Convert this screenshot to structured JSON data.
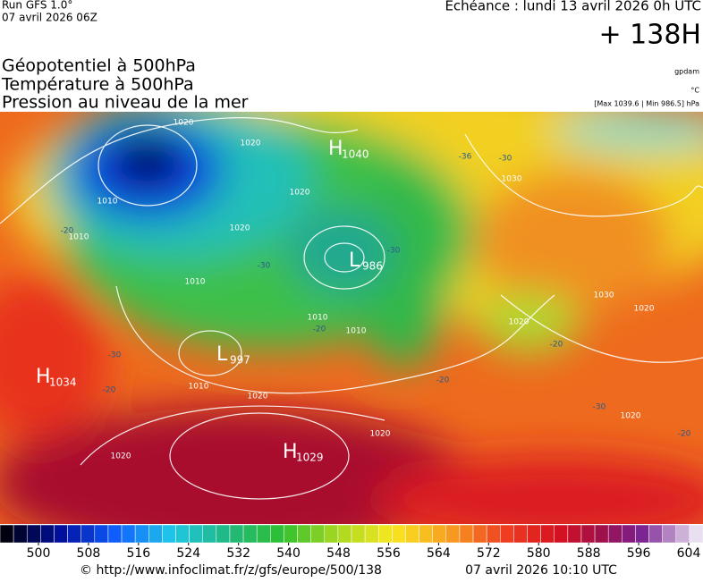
{
  "header": {
    "run": "Run GFS 1.0°",
    "run_date": "07 avril 2026 06Z",
    "valid_time": "Echéance : lundi 13 avril 2026 0h UTC",
    "lead": "+ 138H"
  },
  "layers": [
    "Géopotentiel à 500hPa",
    "Température à 500hPa",
    "Pression au niveau de la mer"
  ],
  "units": {
    "geopotential": "gpdam",
    "temperature": "°C",
    "pressure": "[Max 1039.6 | Min 986.5] hPa"
  },
  "pressure_centers": [
    {
      "label": "H",
      "value": 1040
    },
    {
      "label": "L",
      "value": 986
    },
    {
      "label": "L",
      "value": 997
    },
    {
      "label": "H",
      "value": 1034
    },
    {
      "label": "H",
      "value": 1029
    }
  ],
  "isobar_labels": [
    1020,
    1020,
    1010,
    1010,
    1020,
    1020,
    1010,
    1010,
    1010,
    1010,
    1020,
    1020,
    1020,
    1030,
    1030,
    1020,
    1020,
    1020
  ],
  "temperature_labels": [
    -20,
    -30,
    -30,
    -30,
    -20,
    -20,
    -36,
    -30,
    -20,
    -20,
    -30,
    -20
  ],
  "colorbar_ticks": [
    500,
    508,
    516,
    524,
    532,
    540,
    548,
    556,
    564,
    572,
    580,
    588,
    596,
    604
  ],
  "footer": {
    "source": "© http://www.infoclimat.fr/z/gfs/europe/500/138",
    "generated": "07 avril 2026 10:10 UTC"
  }
}
